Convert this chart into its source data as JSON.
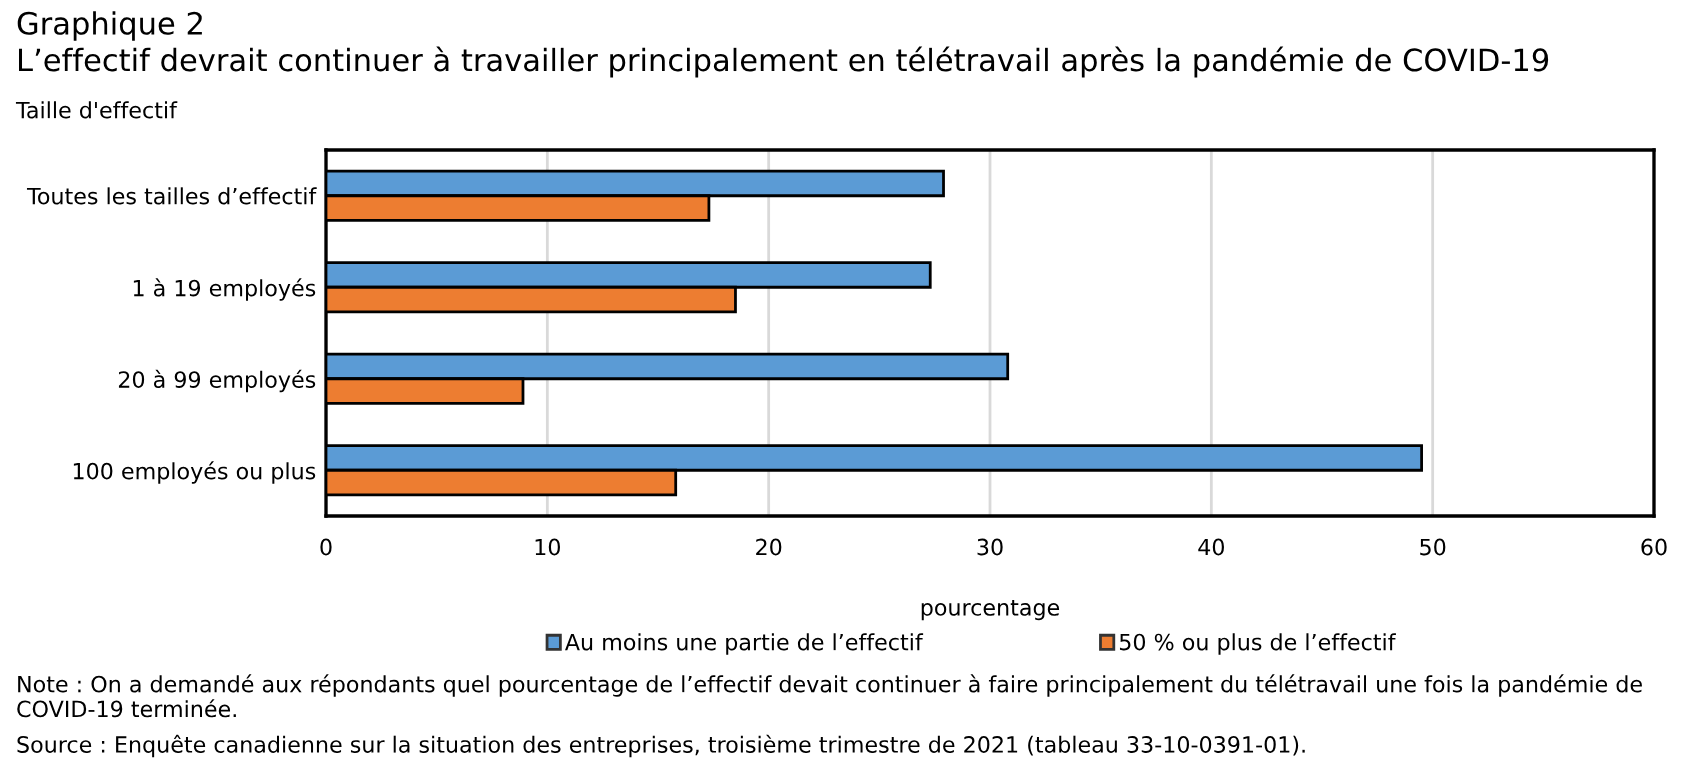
{
  "chart_data": {
    "type": "bar",
    "orientation": "horizontal",
    "title": "Graphique 2",
    "subtitle": "L’effectif devrait continuer à travailler principalement en télétravail après la pandémie de COVID-19",
    "ylabel": "Taille d'effectif",
    "xlabel": "pourcentage",
    "categories": [
      "Toutes les tailles d’effectif",
      "1 à 19 employés",
      "20 à 99 employés",
      "100 employés ou plus"
    ],
    "series": [
      {
        "name": "Au moins une partie de l’effectif",
        "color": "#5b9bd5",
        "values": [
          27.9,
          27.3,
          30.8,
          49.5
        ]
      },
      {
        "name": "50 % ou plus de l’effectif",
        "color": "#ed7d31",
        "values": [
          17.3,
          18.5,
          8.9,
          15.8
        ]
      }
    ],
    "xlim": [
      0,
      60
    ],
    "xticks": [
      0,
      10,
      20,
      30,
      40,
      50,
      60
    ],
    "grid": "x",
    "legend": "bottom",
    "annotations": [
      "Note : On a demandé aux répondants quel pourcentage de l’effectif devait continuer à faire principalement du télétravail une fois la pandémie de COVID-19 terminée.",
      "Source : Enquête canadienne sur la situation des entreprises, troisième trimestre de 2021 (tableau 33-10-0391-01)."
    ]
  }
}
